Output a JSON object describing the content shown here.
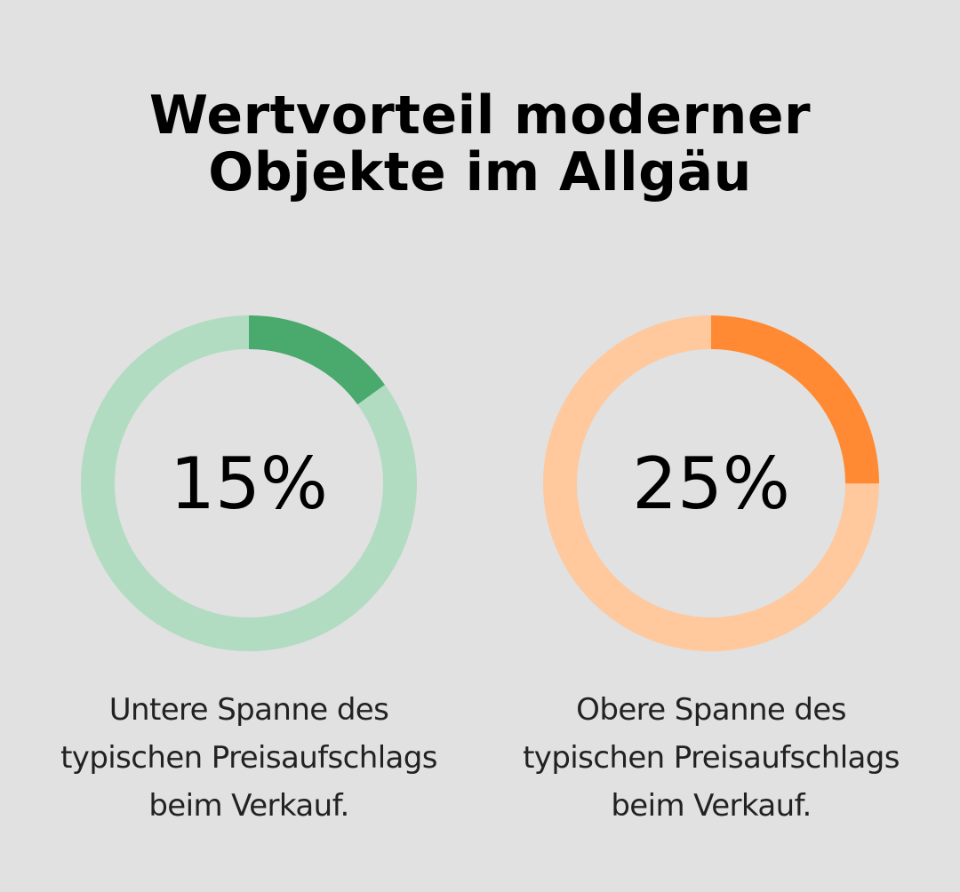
{
  "title_lines": [
    "Wertvorteil moderner",
    "Objekte im Allgäu"
  ],
  "chart_data": [
    {
      "type": "pie",
      "value": 15,
      "label": "15%",
      "caption_lines": [
        "Untere Spanne des",
        "typischen Preisaufschlags",
        "beim Verkauf."
      ],
      "color": "#4aa96c",
      "track_color": "#b1dcc2"
    },
    {
      "type": "pie",
      "value": 25,
      "label": "25%",
      "caption_lines": [
        "Obere Spanne des",
        "typischen Preisaufschlags",
        "beim Verkauf."
      ],
      "color": "#ff8a33",
      "track_color": "#ffc89d"
    }
  ],
  "colors": {
    "background": "#e0e1e0",
    "text": "#000000"
  }
}
